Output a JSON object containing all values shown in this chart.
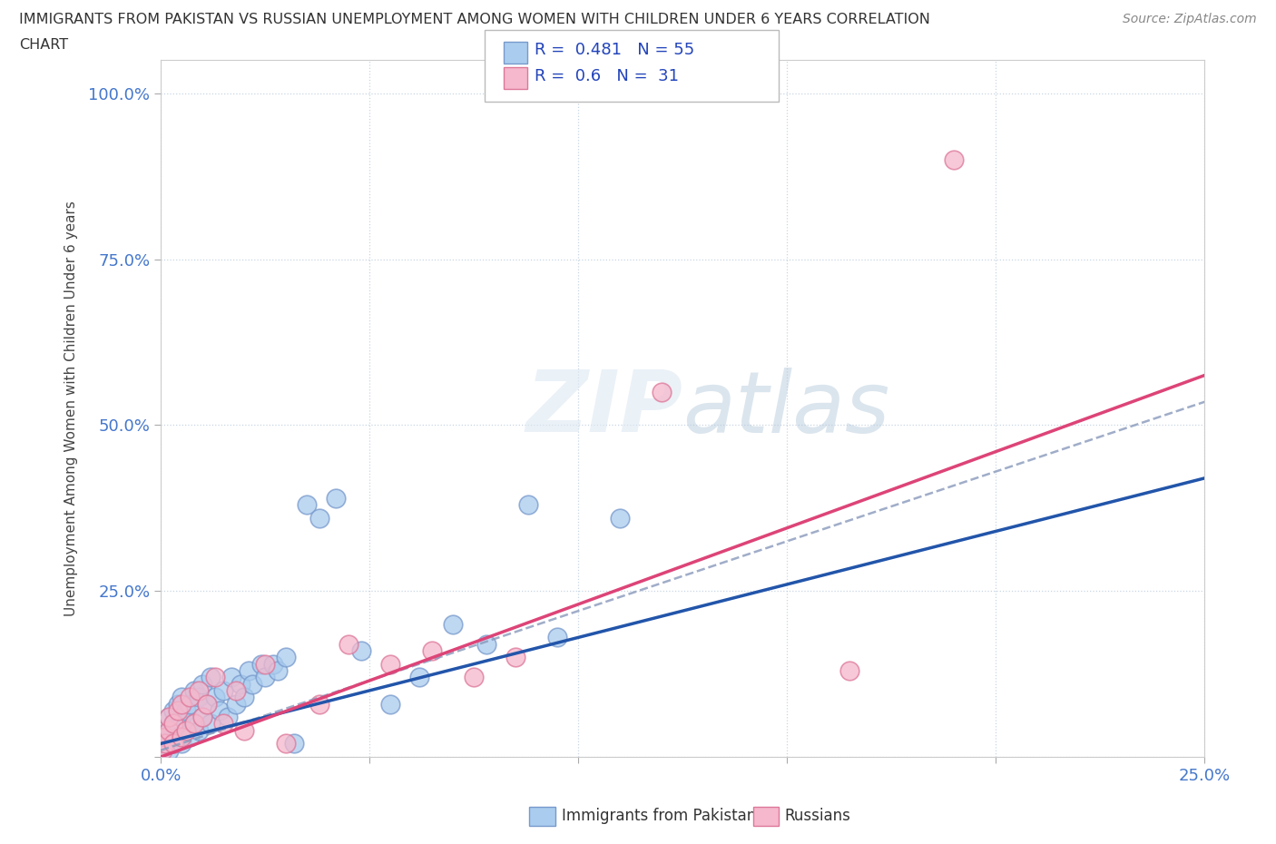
{
  "title_line1": "IMMIGRANTS FROM PAKISTAN VS RUSSIAN UNEMPLOYMENT AMONG WOMEN WITH CHILDREN UNDER 6 YEARS CORRELATION",
  "title_line2": "CHART",
  "source": "Source: ZipAtlas.com",
  "ylabel": "Unemployment Among Women with Children Under 6 years",
  "xlim": [
    0.0,
    0.25
  ],
  "ylim": [
    0.0,
    1.05
  ],
  "r_pakistan": 0.481,
  "n_pakistan": 55,
  "r_russians": 0.6,
  "n_russians": 31,
  "pakistan_color": "#aaccee",
  "pakistan_edge_color": "#7799cc",
  "russian_color": "#f5b8cc",
  "russian_edge_color": "#dd7799",
  "trend_pakistan_color": "#2255aa",
  "trend_russian_color": "#dd4477",
  "legend_labels": [
    "Immigrants from Pakistan",
    "Russians"
  ],
  "pakistan_x": [
    0.0005,
    0.001,
    0.001,
    0.0015,
    0.002,
    0.002,
    0.002,
    0.003,
    0.003,
    0.003,
    0.004,
    0.004,
    0.005,
    0.005,
    0.005,
    0.006,
    0.006,
    0.007,
    0.007,
    0.008,
    0.008,
    0.009,
    0.009,
    0.01,
    0.01,
    0.011,
    0.012,
    0.012,
    0.013,
    0.014,
    0.015,
    0.016,
    0.017,
    0.018,
    0.019,
    0.02,
    0.021,
    0.022,
    0.024,
    0.025,
    0.027,
    0.028,
    0.03,
    0.032,
    0.035,
    0.038,
    0.042,
    0.048,
    0.055,
    0.062,
    0.07,
    0.078,
    0.088,
    0.095,
    0.11
  ],
  "pakistan_y": [
    0.02,
    0.015,
    0.025,
    0.03,
    0.01,
    0.04,
    0.06,
    0.02,
    0.05,
    0.07,
    0.03,
    0.08,
    0.02,
    0.06,
    0.09,
    0.04,
    0.07,
    0.03,
    0.08,
    0.05,
    0.1,
    0.04,
    0.09,
    0.06,
    0.11,
    0.08,
    0.05,
    0.12,
    0.09,
    0.07,
    0.1,
    0.06,
    0.12,
    0.08,
    0.11,
    0.09,
    0.13,
    0.11,
    0.14,
    0.12,
    0.14,
    0.13,
    0.15,
    0.02,
    0.38,
    0.36,
    0.39,
    0.16,
    0.08,
    0.12,
    0.2,
    0.17,
    0.38,
    0.18,
    0.36
  ],
  "russian_x": [
    0.0005,
    0.001,
    0.001,
    0.002,
    0.002,
    0.003,
    0.003,
    0.004,
    0.005,
    0.005,
    0.006,
    0.007,
    0.008,
    0.009,
    0.01,
    0.011,
    0.013,
    0.015,
    0.018,
    0.02,
    0.025,
    0.03,
    0.038,
    0.045,
    0.055,
    0.065,
    0.075,
    0.085,
    0.12,
    0.165,
    0.19
  ],
  "russian_y": [
    0.01,
    0.03,
    0.02,
    0.04,
    0.06,
    0.02,
    0.05,
    0.07,
    0.03,
    0.08,
    0.04,
    0.09,
    0.05,
    0.1,
    0.06,
    0.08,
    0.12,
    0.05,
    0.1,
    0.04,
    0.14,
    0.02,
    0.08,
    0.17,
    0.14,
    0.16,
    0.12,
    0.15,
    0.55,
    0.13,
    0.9
  ],
  "trend_pak_intercept": 0.02,
  "trend_pak_slope": 1.6,
  "trend_rus_intercept": 0.0,
  "trend_rus_slope": 2.3
}
